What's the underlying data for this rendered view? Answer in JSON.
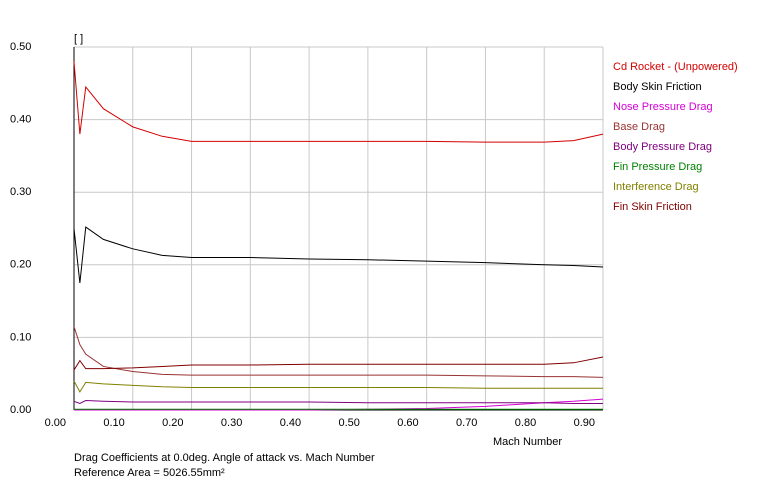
{
  "chart_data": {
    "type": "line",
    "y_unit_label": "[ ]",
    "x_label": "Mach Number",
    "annotations": [
      "Drag Coefficients at 0.0deg. Angle of attack vs. Mach Number",
      "Reference Area =  5026.55mm²"
    ],
    "x": [
      0,
      0.01,
      0.02,
      0.05,
      0.1,
      0.15,
      0.2,
      0.3,
      0.4,
      0.5,
      0.6,
      0.7,
      0.8,
      0.85,
      0.9
    ],
    "series": [
      {
        "name": "Cd Rocket - (Unpowered)",
        "color": "#d40000",
        "values": [
          0.48,
          0.38,
          0.445,
          0.415,
          0.39,
          0.377,
          0.37,
          0.37,
          0.37,
          0.37,
          0.37,
          0.369,
          0.369,
          0.371,
          0.38
        ]
      },
      {
        "name": "Body Skin Friction",
        "color": "#000000",
        "values": [
          0.25,
          0.175,
          0.252,
          0.235,
          0.222,
          0.213,
          0.21,
          0.21,
          0.208,
          0.207,
          0.205,
          0.203,
          0.2,
          0.199,
          0.197
        ]
      },
      {
        "name": "Nose Pressure Drag",
        "color": "#d400d4",
        "values": [
          0,
          0,
          0,
          0,
          0,
          0,
          0,
          0,
          0,
          0.001,
          0.002,
          0.005,
          0.01,
          0.012,
          0.015
        ]
      },
      {
        "name": "Base Drag",
        "color": "#993333",
        "values": [
          0.115,
          0.09,
          0.077,
          0.06,
          0.053,
          0.049,
          0.048,
          0.048,
          0.048,
          0.048,
          0.048,
          0.047,
          0.046,
          0.046,
          0.045
        ]
      },
      {
        "name": "Body Pressure Drag",
        "color": "#800080",
        "values": [
          0.012,
          0.009,
          0.013,
          0.012,
          0.011,
          0.011,
          0.011,
          0.011,
          0.011,
          0.01,
          0.01,
          0.01,
          0.01,
          0.009,
          0.009
        ]
      },
      {
        "name": "Fin Pressure Drag",
        "color": "#008000",
        "values": [
          0.001,
          0.001,
          0.001,
          0.001,
          0.001,
          0.001,
          0.001,
          0.001,
          0.001,
          0.001,
          0.001,
          0.001,
          0.001,
          0.001,
          0.001
        ]
      },
      {
        "name": "Interference Drag",
        "color": "#808000",
        "values": [
          0.04,
          0.025,
          0.038,
          0.036,
          0.034,
          0.032,
          0.031,
          0.031,
          0.031,
          0.031,
          0.031,
          0.03,
          0.03,
          0.03,
          0.03
        ]
      },
      {
        "name": "Fin Skin Friction",
        "color": "#800000",
        "values": [
          0.055,
          0.068,
          0.057,
          0.057,
          0.058,
          0.06,
          0.062,
          0.062,
          0.063,
          0.063,
          0.063,
          0.063,
          0.063,
          0.065,
          0.073
        ]
      }
    ],
    "xlim": [
      0,
      0.9
    ],
    "ylim": [
      0,
      0.5
    ],
    "xticks": [
      {
        "value": 0,
        "label": "0.00"
      },
      {
        "value": 0.1,
        "label": "0.10"
      },
      {
        "value": 0.2,
        "label": "0.20"
      },
      {
        "value": 0.3,
        "label": "0.30"
      },
      {
        "value": 0.4,
        "label": "0.40"
      },
      {
        "value": 0.5,
        "label": "0.50"
      },
      {
        "value": 0.6,
        "label": "0.60"
      },
      {
        "value": 0.7,
        "label": "0.70"
      },
      {
        "value": 0.8,
        "label": "0.80"
      },
      {
        "value": 0.9,
        "label": "0.90"
      }
    ],
    "yticks": [
      {
        "value": 0,
        "label": "0.00"
      },
      {
        "value": 0.1,
        "label": "0.10"
      },
      {
        "value": 0.2,
        "label": "0.20"
      },
      {
        "value": 0.3,
        "label": "0.30"
      },
      {
        "value": 0.4,
        "label": "0.40"
      },
      {
        "value": 0.5,
        "label": "0.50"
      }
    ],
    "grid": true,
    "legend": "right"
  }
}
